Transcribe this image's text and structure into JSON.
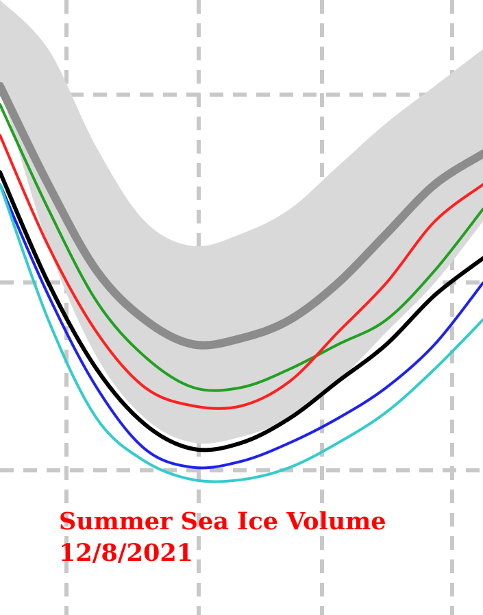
{
  "chart_data": {
    "type": "line",
    "title": "",
    "xlabel": "",
    "ylabel": "",
    "xlim": [
      0,
      100
    ],
    "ylim": [
      0,
      100
    ],
    "grid": true,
    "legend": "none",
    "band": {
      "color": "#d9d9d9",
      "x": [
        0,
        10,
        20,
        30,
        40,
        50,
        60,
        70,
        80,
        90,
        100
      ],
      "upper": [
        100,
        92,
        76,
        64,
        60,
        62,
        66,
        73,
        80,
        86,
        92
      ],
      "lower": [
        86,
        60,
        42,
        32,
        28,
        29,
        32,
        38,
        46,
        54,
        64
      ]
    },
    "series": [
      {
        "color": "#8c8c8c",
        "width": 12,
        "x": [
          0,
          10,
          20,
          30,
          40,
          50,
          60,
          70,
          80,
          90,
          100
        ],
        "y": [
          86,
          70,
          56,
          48,
          44,
          45,
          48,
          54,
          62,
          70,
          75
        ]
      },
      {
        "color": "#22a022",
        "width": 4,
        "x": [
          0,
          10,
          20,
          30,
          40,
          50,
          60,
          70,
          80,
          90,
          100
        ],
        "y": [
          83,
          66,
          51,
          42,
          37,
          37,
          40,
          44,
          48,
          56,
          66
        ]
      },
      {
        "color": "#ff2020",
        "width": 4,
        "x": [
          0,
          10,
          20,
          30,
          40,
          50,
          60,
          70,
          80,
          90,
          100
        ],
        "y": [
          78,
          60,
          46,
          37,
          34,
          34,
          38,
          46,
          54,
          64,
          70
        ]
      },
      {
        "color": "#000000",
        "width": 6,
        "x": [
          0,
          10,
          20,
          30,
          40,
          50,
          60,
          70,
          80,
          90,
          100
        ],
        "y": [
          72,
          54,
          40,
          31,
          27,
          28,
          32,
          38,
          44,
          52,
          58
        ]
      },
      {
        "color": "#1e22ee",
        "width": 4,
        "x": [
          0,
          10,
          20,
          30,
          40,
          50,
          60,
          70,
          80,
          90,
          100
        ],
        "y": [
          70,
          52,
          37,
          27,
          24,
          25,
          28,
          32,
          37,
          44,
          54
        ]
      },
      {
        "color": "#33cccc",
        "width": 4,
        "x": [
          0,
          10,
          20,
          30,
          40,
          50,
          60,
          70,
          80,
          90,
          100
        ],
        "y": [
          70,
          48,
          32,
          25,
          22,
          22,
          24,
          28,
          33,
          40,
          48
        ]
      }
    ]
  },
  "caption": {
    "line1": "Summer Sea Ice Volume",
    "line2": "12/8/2021"
  }
}
